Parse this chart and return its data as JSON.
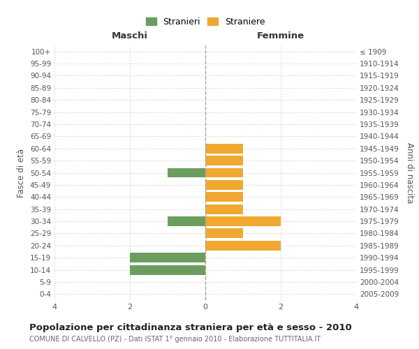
{
  "age_groups": [
    "100+",
    "95-99",
    "90-94",
    "85-89",
    "80-84",
    "75-79",
    "70-74",
    "65-69",
    "60-64",
    "55-59",
    "50-54",
    "45-49",
    "40-44",
    "35-39",
    "30-34",
    "25-29",
    "20-24",
    "15-19",
    "10-14",
    "5-9",
    "0-4"
  ],
  "birth_years": [
    "≤ 1909",
    "1910-1914",
    "1915-1919",
    "1920-1924",
    "1925-1929",
    "1930-1934",
    "1935-1939",
    "1940-1944",
    "1945-1949",
    "1950-1954",
    "1955-1959",
    "1960-1964",
    "1965-1969",
    "1970-1974",
    "1975-1979",
    "1980-1984",
    "1985-1989",
    "1990-1994",
    "1995-1999",
    "2000-2004",
    "2005-2009"
  ],
  "males": [
    0,
    0,
    0,
    0,
    0,
    0,
    0,
    0,
    0,
    0,
    1,
    0,
    0,
    0,
    1,
    0,
    0,
    2,
    2,
    0,
    0
  ],
  "females": [
    0,
    0,
    0,
    0,
    0,
    0,
    0,
    0,
    1,
    1,
    1,
    1,
    1,
    1,
    2,
    1,
    2,
    0,
    0,
    0,
    0
  ],
  "male_color": "#6b9e5e",
  "female_color": "#f0a830",
  "background_color": "#ffffff",
  "grid_color": "#cccccc",
  "title": "Popolazione per cittadinanza straniera per età e sesso - 2010",
  "subtitle": "COMUNE DI CALVELLO (PZ) - Dati ISTAT 1° gennaio 2010 - Elaborazione TUTTITALIA.IT",
  "xlabel_left": "Maschi",
  "xlabel_right": "Femmine",
  "ylabel_left": "Fasce di età",
  "ylabel_right": "Anni di nascita",
  "legend_male": "Stranieri",
  "legend_female": "Straniere",
  "xlim": 4,
  "bar_height": 0.8
}
